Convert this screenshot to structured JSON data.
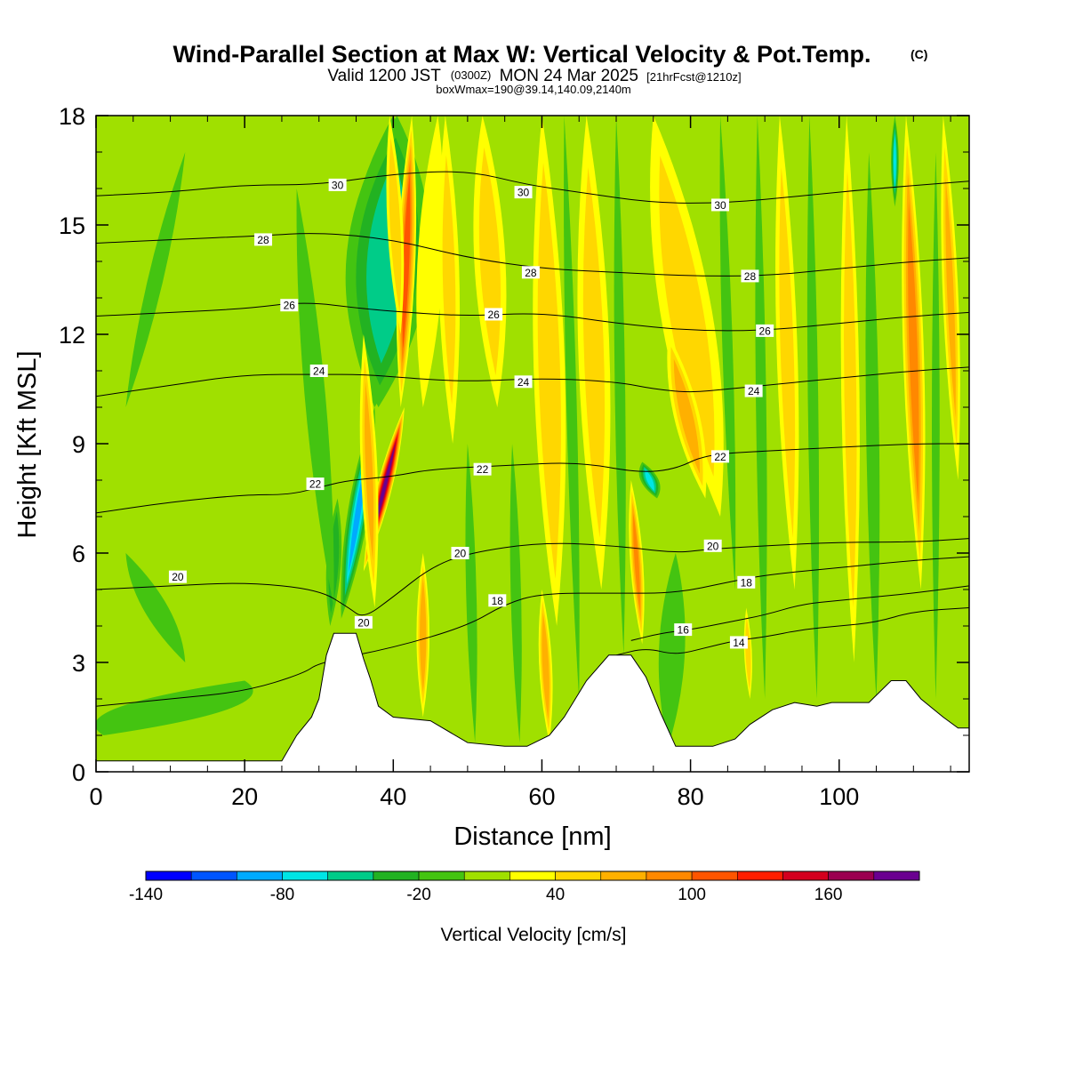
{
  "chart_data": {
    "type": "heatmap",
    "title": "Wind-Parallel Section at Max W: Vertical Velocity & Pot.Temp.",
    "title_mark": "(C)",
    "subtitle_parts": [
      "Valid 1200 JST",
      "(0300Z)",
      "MON 24 Mar 2025",
      "[21hrFcst@1210z]"
    ],
    "subtitle2": "boxWmax=190@39.14,140.09,2140m",
    "xlabel": "Distance [nm]",
    "ylabel": "Height [Kft MSL]",
    "xlim": [
      0,
      117.5
    ],
    "ylim": [
      0,
      18
    ],
    "xticks": [
      0,
      20,
      40,
      60,
      80,
      100
    ],
    "yticks": [
      0,
      3,
      6,
      9,
      12,
      15,
      18
    ],
    "colorbar": {
      "label": "Vertical Velocity [cm/s]",
      "ticks": [
        -140,
        -80,
        -20,
        40,
        100,
        160
      ],
      "levels": [
        -150,
        -130,
        -110,
        -90,
        -70,
        -50,
        -30,
        -10,
        10,
        30,
        50,
        70,
        90,
        110,
        130,
        150,
        170,
        190
      ],
      "colors": [
        "#0000ff",
        "#0055ff",
        "#00aaff",
        "#00e5e5",
        "#00cc88",
        "#22b222",
        "#44c411",
        "#a0e000",
        "#ffff00",
        "#ffd700",
        "#ffb000",
        "#ff8800",
        "#ff5500",
        "#ff1e00",
        "#d4001e",
        "#9b0050",
        "#6a0090"
      ]
    },
    "background_color": "#a0e000",
    "terrain": [
      [
        0,
        0.3
      ],
      [
        25,
        0.3
      ],
      [
        27,
        1.0
      ],
      [
        29,
        1.5
      ],
      [
        30,
        2.0
      ],
      [
        31,
        3.2
      ],
      [
        32,
        3.8
      ],
      [
        33,
        3.8
      ],
      [
        35,
        3.8
      ],
      [
        36,
        3.1
      ],
      [
        37,
        2.5
      ],
      [
        38,
        1.8
      ],
      [
        40,
        1.5
      ],
      [
        45,
        1.4
      ],
      [
        50,
        0.8
      ],
      [
        55,
        0.7
      ],
      [
        58,
        0.7
      ],
      [
        61,
        1.0
      ],
      [
        63,
        1.5
      ],
      [
        66,
        2.5
      ],
      [
        69,
        3.2
      ],
      [
        72,
        3.2
      ],
      [
        74,
        2.6
      ],
      [
        76,
        1.6
      ],
      [
        78,
        0.7
      ],
      [
        83,
        0.7
      ],
      [
        86,
        0.9
      ],
      [
        88,
        1.3
      ],
      [
        91,
        1.7
      ],
      [
        94,
        1.9
      ],
      [
        97,
        1.8
      ],
      [
        99,
        1.9
      ],
      [
        104,
        1.9
      ],
      [
        107,
        2.5
      ],
      [
        109,
        2.5
      ],
      [
        111,
        2.0
      ],
      [
        114,
        1.5
      ],
      [
        116,
        1.2
      ],
      [
        117.5,
        1.2
      ]
    ],
    "velocity_features": [
      {
        "x0": 37.5,
        "x1": 40,
        "y0": 10,
        "y1": 18,
        "w": 14,
        "value": -140
      },
      {
        "x0": 33,
        "x1": 37.5,
        "y0": 4.2,
        "y1": 10,
        "w": 4,
        "value": -100
      },
      {
        "x0": 31.5,
        "x1": 32.5,
        "y0": 4.0,
        "y1": 7.5,
        "w": 2.8,
        "value": -50
      },
      {
        "x0": 38,
        "x1": 40.5,
        "y0": 10,
        "y1": 18,
        "w": 16,
        "value": -70
      },
      {
        "x0": 41.5,
        "x1": 36,
        "y0": 10,
        "y1": 5.5,
        "w": 3,
        "value": 190
      },
      {
        "x0": 42.5,
        "x1": 41,
        "y0": 18,
        "y1": 10,
        "w": 3.5,
        "value": 110
      },
      {
        "x0": 37.5,
        "x1": 36,
        "y0": 4.5,
        "y1": 12,
        "w": 3.2,
        "value": 60
      },
      {
        "x0": 41,
        "x1": 39.5,
        "y0": 12,
        "y1": 18,
        "w": 3,
        "value": 50
      },
      {
        "x0": 46,
        "x1": 44,
        "y0": 18,
        "y1": 10,
        "w": 5,
        "value": 35
      },
      {
        "x0": 44,
        "x1": 44,
        "y0": 1.5,
        "y1": 6,
        "w": 2.5,
        "value": 70
      },
      {
        "x0": 48,
        "x1": 47,
        "y0": 9,
        "y1": 18,
        "w": 4,
        "value": 40
      },
      {
        "x0": 54,
        "x1": 52,
        "y0": 10,
        "y1": 18,
        "w": 6,
        "value": 45
      },
      {
        "x0": 62,
        "x1": 60,
        "y0": 4,
        "y1": 18,
        "w": 6,
        "value": 55
      },
      {
        "x0": 61,
        "x1": 60,
        "y0": 0.8,
        "y1": 5,
        "w": 2.5,
        "value": 70
      },
      {
        "x0": 68,
        "x1": 66,
        "y0": 5,
        "y1": 18,
        "w": 6,
        "value": 45
      },
      {
        "x0": 84,
        "x1": 75,
        "y0": 7,
        "y1": 18,
        "w": 10,
        "value": 50
      },
      {
        "x0": 82,
        "x1": 77,
        "y0": 7.5,
        "y1": 12,
        "w": 5,
        "value": 70
      },
      {
        "x0": 73.5,
        "x1": 72,
        "y0": 3.5,
        "y1": 8,
        "w": 2.5,
        "value": 80
      },
      {
        "x0": 75.5,
        "x1": 73.5,
        "y0": 7.5,
        "y1": 8.5,
        "w": 3.5,
        "value": -80
      },
      {
        "x0": 94,
        "x1": 92,
        "y0": 5,
        "y1": 18,
        "w": 4,
        "value": 45
      },
      {
        "x0": 102,
        "x1": 101,
        "y0": 3,
        "y1": 18,
        "w": 3.5,
        "value": 50
      },
      {
        "x0": 111,
        "x1": 109,
        "y0": 5,
        "y1": 18,
        "w": 4,
        "value": 90
      },
      {
        "x0": 116,
        "x1": 114,
        "y0": 8,
        "y1": 18,
        "w": 3,
        "value": 60
      },
      {
        "x0": 88,
        "x1": 87.5,
        "y0": 2,
        "y1": 4.5,
        "w": 1.5,
        "value": 50
      },
      {
        "x0": 32,
        "x1": 27,
        "y0": 4.5,
        "y1": 16,
        "w": 4,
        "value": -25
      },
      {
        "x0": 12,
        "x1": 4,
        "y0": 3,
        "y1": 6,
        "w": 5,
        "value": -20
      },
      {
        "x0": 4,
        "x1": 12,
        "y0": 10,
        "y1": 17,
        "w": 3,
        "value": -20
      },
      {
        "x0": 1,
        "x1": 20,
        "y0": 1,
        "y1": 2.5,
        "w": 22,
        "value": -20
      },
      {
        "x0": 51,
        "x1": 50,
        "y0": 0.8,
        "y1": 9,
        "w": 2,
        "value": -20
      },
      {
        "x0": 57,
        "x1": 56,
        "y0": 0.8,
        "y1": 9,
        "w": 2,
        "value": -20
      },
      {
        "x0": 65,
        "x1": 63,
        "y0": 2,
        "y1": 18,
        "w": 2,
        "value": -20
      },
      {
        "x0": 71,
        "x1": 70,
        "y0": 3.2,
        "y1": 18,
        "w": 2,
        "value": -20
      },
      {
        "x0": 77,
        "x1": 78,
        "y0": 0.7,
        "y1": 6,
        "w": 5,
        "value": -20
      },
      {
        "x0": 86,
        "x1": 84,
        "y0": 5,
        "y1": 18,
        "w": 2,
        "value": -20
      },
      {
        "x0": 90,
        "x1": 89,
        "y0": 2,
        "y1": 18,
        "w": 2,
        "value": -20
      },
      {
        "x0": 97,
        "x1": 96,
        "y0": 2,
        "y1": 18,
        "w": 2,
        "value": -20
      },
      {
        "x0": 105,
        "x1": 104,
        "y0": 2,
        "y1": 17,
        "w": 2.5,
        "value": -25
      },
      {
        "x0": 113,
        "x1": 113,
        "y0": 2,
        "y1": 17,
        "w": 1.5,
        "value": -25
      },
      {
        "x0": 107.5,
        "x1": 107.5,
        "y0": 15.5,
        "y1": 18,
        "w": 1.5,
        "value": -80
      }
    ],
    "theta_contours": [
      {
        "level": 14,
        "points": [
          [
            70,
            3.2
          ],
          [
            74,
            3.4
          ],
          [
            78,
            3.2
          ],
          [
            82,
            3.4
          ],
          [
            86,
            3.6
          ],
          [
            90,
            3.7
          ],
          [
            95,
            3.9
          ],
          [
            100,
            4.0
          ],
          [
            105,
            4.1
          ],
          [
            110,
            4.4
          ],
          [
            117.5,
            4.5
          ]
        ]
      },
      {
        "level": 16,
        "points": [
          [
            72,
            3.6
          ],
          [
            76,
            3.8
          ],
          [
            80,
            3.9
          ],
          [
            85,
            4.1
          ],
          [
            90,
            4.3
          ],
          [
            95,
            4.6
          ],
          [
            100,
            4.7
          ],
          [
            105,
            4.8
          ],
          [
            110,
            4.9
          ],
          [
            117.5,
            5.1
          ]
        ]
      },
      {
        "level": 18,
        "points": [
          [
            0,
            1.8
          ],
          [
            10,
            2.0
          ],
          [
            20,
            2.2
          ],
          [
            28,
            2.7
          ],
          [
            30,
            3.0
          ],
          [
            40,
            3.4
          ],
          [
            50,
            4.0
          ],
          [
            55,
            4.6
          ],
          [
            60,
            4.9
          ],
          [
            70,
            4.9
          ],
          [
            78,
            4.9
          ],
          [
            85,
            5.2
          ],
          [
            90,
            5.4
          ],
          [
            100,
            5.6
          ],
          [
            110,
            5.8
          ],
          [
            117.5,
            5.9
          ]
        ]
      },
      {
        "level": 20,
        "points": [
          [
            0,
            5.0
          ],
          [
            10,
            5.1
          ],
          [
            20,
            5.2
          ],
          [
            30,
            5.0
          ],
          [
            34,
            4.5
          ],
          [
            36,
            4.2
          ],
          [
            40,
            4.8
          ],
          [
            45,
            5.6
          ],
          [
            50,
            6.0
          ],
          [
            60,
            6.3
          ],
          [
            70,
            6.2
          ],
          [
            78,
            6.0
          ],
          [
            82,
            6.1
          ],
          [
            90,
            6.2
          ],
          [
            100,
            6.3
          ],
          [
            110,
            6.3
          ],
          [
            117.5,
            6.4
          ]
        ]
      },
      {
        "level": 22,
        "points": [
          [
            0,
            7.1
          ],
          [
            10,
            7.4
          ],
          [
            20,
            7.6
          ],
          [
            26,
            7.6
          ],
          [
            30,
            7.8
          ],
          [
            34,
            8.0
          ],
          [
            40,
            8.1
          ],
          [
            45,
            8.3
          ],
          [
            55,
            8.4
          ],
          [
            65,
            8.5
          ],
          [
            73,
            8.2
          ],
          [
            78,
            8.3
          ],
          [
            82,
            8.7
          ],
          [
            90,
            8.8
          ],
          [
            100,
            8.9
          ],
          [
            110,
            9.0
          ],
          [
            117.5,
            9.0
          ]
        ]
      },
      {
        "level": 24,
        "points": [
          [
            0,
            10.3
          ],
          [
            10,
            10.6
          ],
          [
            20,
            10.9
          ],
          [
            30,
            10.9
          ],
          [
            36,
            10.9
          ],
          [
            42,
            10.8
          ],
          [
            50,
            10.7
          ],
          [
            60,
            10.8
          ],
          [
            70,
            10.7
          ],
          [
            75,
            10.5
          ],
          [
            80,
            10.4
          ],
          [
            85,
            10.5
          ],
          [
            90,
            10.6
          ],
          [
            100,
            10.8
          ],
          [
            110,
            11.0
          ],
          [
            117.5,
            11.1
          ]
        ]
      },
      {
        "level": 26,
        "points": [
          [
            0,
            12.5
          ],
          [
            10,
            12.6
          ],
          [
            20,
            12.7
          ],
          [
            28,
            12.9
          ],
          [
            36,
            12.7
          ],
          [
            42,
            12.6
          ],
          [
            50,
            12.5
          ],
          [
            60,
            12.6
          ],
          [
            70,
            12.3
          ],
          [
            80,
            12.1
          ],
          [
            90,
            12.1
          ],
          [
            100,
            12.3
          ],
          [
            110,
            12.5
          ],
          [
            117.5,
            12.6
          ]
        ]
      },
      {
        "level": 28,
        "points": [
          [
            0,
            14.5
          ],
          [
            10,
            14.6
          ],
          [
            22,
            14.7
          ],
          [
            30,
            14.8
          ],
          [
            40,
            14.6
          ],
          [
            50,
            14.1
          ],
          [
            60,
            13.8
          ],
          [
            70,
            13.7
          ],
          [
            80,
            13.6
          ],
          [
            90,
            13.6
          ],
          [
            100,
            13.8
          ],
          [
            110,
            14.0
          ],
          [
            117.5,
            14.1
          ]
        ]
      },
      {
        "level": 30,
        "points": [
          [
            0,
            15.8
          ],
          [
            10,
            15.9
          ],
          [
            20,
            16.1
          ],
          [
            30,
            16.1
          ],
          [
            40,
            16.4
          ],
          [
            50,
            16.5
          ],
          [
            58,
            16.1
          ],
          [
            65,
            15.9
          ],
          [
            75,
            15.6
          ],
          [
            85,
            15.6
          ],
          [
            95,
            15.8
          ],
          [
            105,
            16.0
          ],
          [
            117.5,
            16.2
          ]
        ]
      }
    ],
    "contour_labels": [
      {
        "text": "30",
        "x": 32.5,
        "y": 16.1
      },
      {
        "text": "30",
        "x": 57.5,
        "y": 15.9
      },
      {
        "text": "30",
        "x": 84,
        "y": 15.55
      },
      {
        "text": "28",
        "x": 22.5,
        "y": 14.6
      },
      {
        "text": "28",
        "x": 58.5,
        "y": 13.7
      },
      {
        "text": "28",
        "x": 88,
        "y": 13.6
      },
      {
        "text": "26",
        "x": 26,
        "y": 12.8
      },
      {
        "text": "26",
        "x": 53.5,
        "y": 12.55
      },
      {
        "text": "26",
        "x": 90,
        "y": 12.1
      },
      {
        "text": "24",
        "x": 30,
        "y": 11.0
      },
      {
        "text": "24",
        "x": 57.5,
        "y": 10.7
      },
      {
        "text": "24",
        "x": 88.5,
        "y": 10.45
      },
      {
        "text": "22",
        "x": 29.5,
        "y": 7.9
      },
      {
        "text": "22",
        "x": 52,
        "y": 8.3
      },
      {
        "text": "22",
        "x": 84,
        "y": 8.65
      },
      {
        "text": "20",
        "x": 11,
        "y": 5.35
      },
      {
        "text": "20",
        "x": 49,
        "y": 6.0
      },
      {
        "text": "20",
        "x": 83,
        "y": 6.2
      },
      {
        "text": "20",
        "x": 36,
        "y": 4.1
      },
      {
        "text": "18",
        "x": 54,
        "y": 4.7
      },
      {
        "text": "18",
        "x": 87.5,
        "y": 5.2
      },
      {
        "text": "16",
        "x": 79,
        "y": 3.9
      },
      {
        "text": "14",
        "x": 86.5,
        "y": 3.55
      }
    ]
  }
}
